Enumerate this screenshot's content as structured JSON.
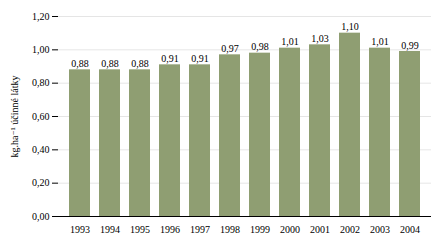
{
  "chart_data": {
    "type": "bar",
    "categories": [
      "1993",
      "1994",
      "1995",
      "1996",
      "1997",
      "1998",
      "1999",
      "2000",
      "2001",
      "2002",
      "2003",
      "2004"
    ],
    "values": [
      0.88,
      0.88,
      0.88,
      0.91,
      0.91,
      0.97,
      0.98,
      1.01,
      1.03,
      1.1,
      1.01,
      0.99
    ],
    "value_labels": [
      "0,88",
      "0,88",
      "0,88",
      "0,91",
      "0,91",
      "0,97",
      "0,98",
      "1,01",
      "1,03",
      "1,10",
      "1,01",
      "0,99"
    ],
    "data_labels": true,
    "color": "#8f9e72",
    "ylabel": "kg.ha⁻¹ účinné látky",
    "ylim": [
      0.0,
      1.2
    ],
    "yticks": [
      {
        "value": 0.0,
        "label": "0,00"
      },
      {
        "value": 0.2,
        "label": "0,20"
      },
      {
        "value": 0.4,
        "label": "0,40"
      },
      {
        "value": 0.6,
        "label": "0,60"
      },
      {
        "value": 0.8,
        "label": "0,80"
      },
      {
        "value": 1.0,
        "label": "1,00"
      },
      {
        "value": 1.2,
        "label": "1,20"
      }
    ],
    "grid": true
  }
}
